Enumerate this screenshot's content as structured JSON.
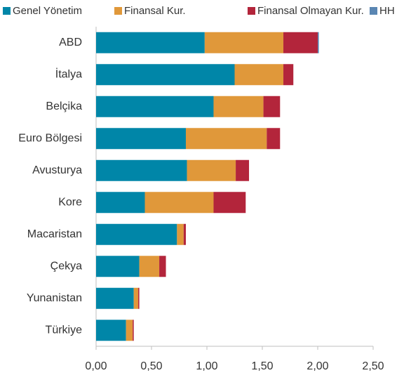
{
  "chart_data": {
    "type": "stacked-barh",
    "categories": [
      "ABD",
      "İtalya",
      "Belçika",
      "Euro Bölgesi",
      "Avusturya",
      "Kore",
      "Macaristan",
      "Çekya",
      "Yunanistan",
      "Türkiye"
    ],
    "series": [
      {
        "name": "Genel Yönetim",
        "color": "#0086a8",
        "values": [
          0.98,
          1.25,
          1.06,
          0.81,
          0.82,
          0.44,
          0.73,
          0.39,
          0.34,
          0.27
        ]
      },
      {
        "name": "Finansal Kur.",
        "color": "#e0983a",
        "values": [
          0.71,
          0.44,
          0.45,
          0.73,
          0.44,
          0.62,
          0.06,
          0.18,
          0.04,
          0.06
        ]
      },
      {
        "name": "Finansal Olmayan Kur.",
        "color": "#b3253b",
        "values": [
          0.31,
          0.09,
          0.15,
          0.12,
          0.12,
          0.29,
          0.02,
          0.06,
          0.01,
          0.01
        ]
      },
      {
        "name": "HH",
        "color": "#5a86b3",
        "values": [
          0.01,
          0,
          0,
          0,
          0,
          0,
          0,
          0,
          0,
          0
        ]
      }
    ],
    "xlim": [
      0,
      2.5
    ],
    "xticks": [
      {
        "value": 0,
        "label": "0,00"
      },
      {
        "value": 0.5,
        "label": "0,50"
      },
      {
        "value": 1,
        "label": "1,00"
      },
      {
        "value": 1.5,
        "label": "1,50"
      },
      {
        "value": 2,
        "label": "2,00"
      },
      {
        "value": 2.5,
        "label": "2,50"
      }
    ],
    "legend": "top"
  }
}
